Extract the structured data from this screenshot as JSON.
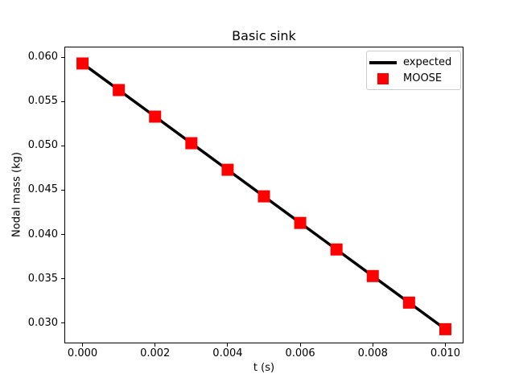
{
  "chart_data": {
    "type": "line",
    "title": "Basic sink",
    "xlabel": "t (s)",
    "ylabel": "Nodal mass (kg)",
    "x": [
      0.0,
      0.001,
      0.002,
      0.003,
      0.004,
      0.005,
      0.006,
      0.007,
      0.008,
      0.009,
      0.01
    ],
    "series": [
      {
        "name": "expected",
        "style": "line",
        "color": "#000000",
        "linewidth": 3.5,
        "values": [
          0.0593,
          0.0563,
          0.0533,
          0.0503,
          0.0473,
          0.0443,
          0.0413,
          0.0383,
          0.0353,
          0.0323,
          0.0293
        ]
      },
      {
        "name": "MOOSE",
        "style": "scatter",
        "marker": "square",
        "color": "#ff0000",
        "markersize": 15,
        "values": [
          0.0593,
          0.0563,
          0.0533,
          0.0503,
          0.0473,
          0.0443,
          0.0413,
          0.0383,
          0.0353,
          0.0323,
          0.0293
        ]
      }
    ],
    "xlim": [
      -0.0005,
      0.0105
    ],
    "ylim": [
      0.0277,
      0.0612
    ],
    "xticks": {
      "values": [
        0.0,
        0.002,
        0.004,
        0.006,
        0.008,
        0.01
      ],
      "labels": [
        "0.000",
        "0.002",
        "0.004",
        "0.006",
        "0.008",
        "0.010"
      ]
    },
    "yticks": {
      "values": [
        0.03,
        0.035,
        0.04,
        0.045,
        0.05,
        0.055,
        0.06
      ],
      "labels": [
        "0.030",
        "0.035",
        "0.040",
        "0.045",
        "0.050",
        "0.055",
        "0.060"
      ]
    },
    "grid": false,
    "legend": {
      "position": "upper right",
      "entries": [
        {
          "label": "expected",
          "swatch": "line",
          "color": "#000000"
        },
        {
          "label": "MOOSE",
          "swatch": "square",
          "color": "#ff0000"
        }
      ]
    }
  },
  "colors": {
    "background": "#ffffff",
    "spine": "#000000",
    "legend_border": "#cccccc"
  }
}
